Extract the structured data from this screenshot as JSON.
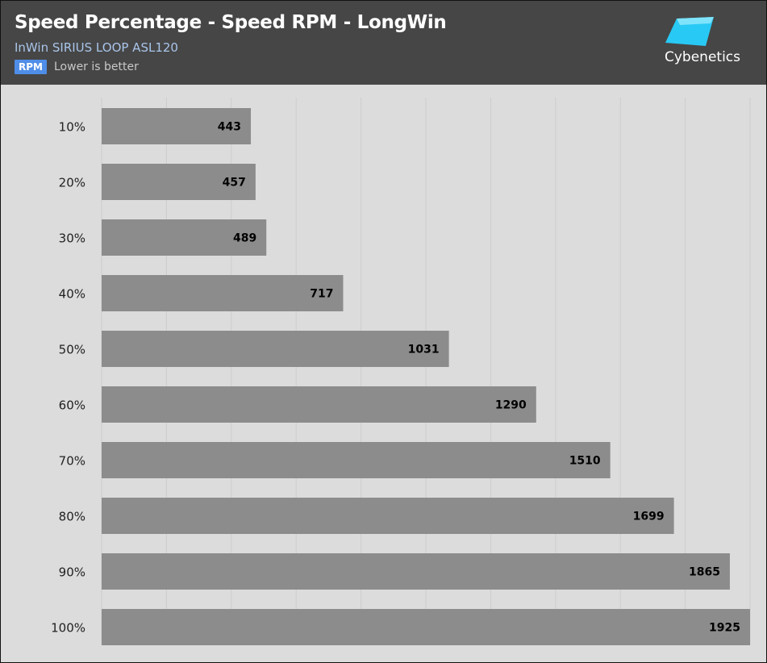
{
  "header": {
    "title": "Speed Percentage - Speed RPM - LongWin",
    "subtitle": "InWin SIRIUS LOOP ASL120",
    "badge": "RPM",
    "note": "Lower is better",
    "logo_text": "Cybenetics"
  },
  "colors": {
    "header_bg": "#464646",
    "plot_bg": "#dcdcdc",
    "bar": "#8c8c8c",
    "subtitle": "#a9c5ea",
    "badge": "#4f8ee8",
    "logo_accent": "#29c9f5"
  },
  "chart_data": {
    "type": "bar",
    "orientation": "horizontal",
    "title": "Speed Percentage - Speed RPM - LongWin",
    "subtitle": "InWin SIRIUS LOOP ASL120",
    "categories": [
      "10%",
      "20%",
      "30%",
      "40%",
      "50%",
      "60%",
      "70%",
      "80%",
      "90%",
      "100%"
    ],
    "series": [
      {
        "values": [
          443,
          457,
          489,
          717,
          1031,
          1290,
          1510,
          1699,
          1865,
          1925
        ]
      }
    ],
    "value_labels": [
      "443",
      "457",
      "489",
      "717",
      "1031",
      "1290",
      "1510",
      "1699",
      "1865",
      "1925"
    ],
    "xlim": [
      0,
      1925
    ],
    "grid": true,
    "legend": "none"
  }
}
